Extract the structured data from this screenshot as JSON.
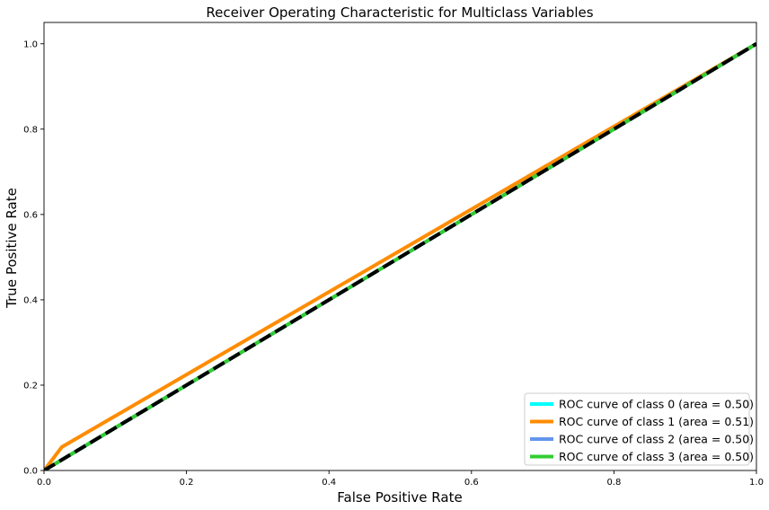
{
  "chart_data": {
    "type": "line",
    "title": "Receiver Operating Characteristic for Multiclass Variables",
    "xlabel": "False Positive Rate",
    "ylabel": "True Positive Rate",
    "xlim": [
      0.0,
      1.0
    ],
    "ylim": [
      0.0,
      1.05
    ],
    "xticks": [
      0.0,
      0.2,
      0.4,
      0.6,
      0.8,
      1.0
    ],
    "yticks": [
      0.0,
      0.2,
      0.4,
      0.6,
      0.8,
      1.0
    ],
    "xtick_labels": [
      "0.0",
      "0.2",
      "0.4",
      "0.6",
      "0.8",
      "1.0"
    ],
    "ytick_labels": [
      "0.0",
      "0.2",
      "0.4",
      "0.6",
      "0.8",
      "1.0"
    ],
    "grid": false,
    "legend_position": "lower-right",
    "series": [
      {
        "name": "ROC curve of class 0 (area = 0.50)",
        "color": "#00ffff",
        "x": [
          0.0,
          1.0
        ],
        "y": [
          0.0,
          1.0
        ]
      },
      {
        "name": "ROC curve of class 1 (area = 0.51)",
        "color": "#ff8c00",
        "x": [
          0.0,
          0.025,
          1.0
        ],
        "y": [
          0.0,
          0.055,
          1.0
        ]
      },
      {
        "name": "ROC curve of class 2 (area = 0.50)",
        "color": "#6495ed",
        "x": [
          0.0,
          1.0
        ],
        "y": [
          0.0,
          1.0
        ]
      },
      {
        "name": "ROC curve of class 3 (area = 0.50)",
        "color": "#32cd32",
        "x": [
          0.0,
          1.0
        ],
        "y": [
          0.0,
          1.0
        ]
      }
    ],
    "reference_line": {
      "color": "#000000",
      "style": "dashed",
      "x": [
        0.0,
        1.0
      ],
      "y": [
        0.0,
        1.0
      ]
    }
  }
}
